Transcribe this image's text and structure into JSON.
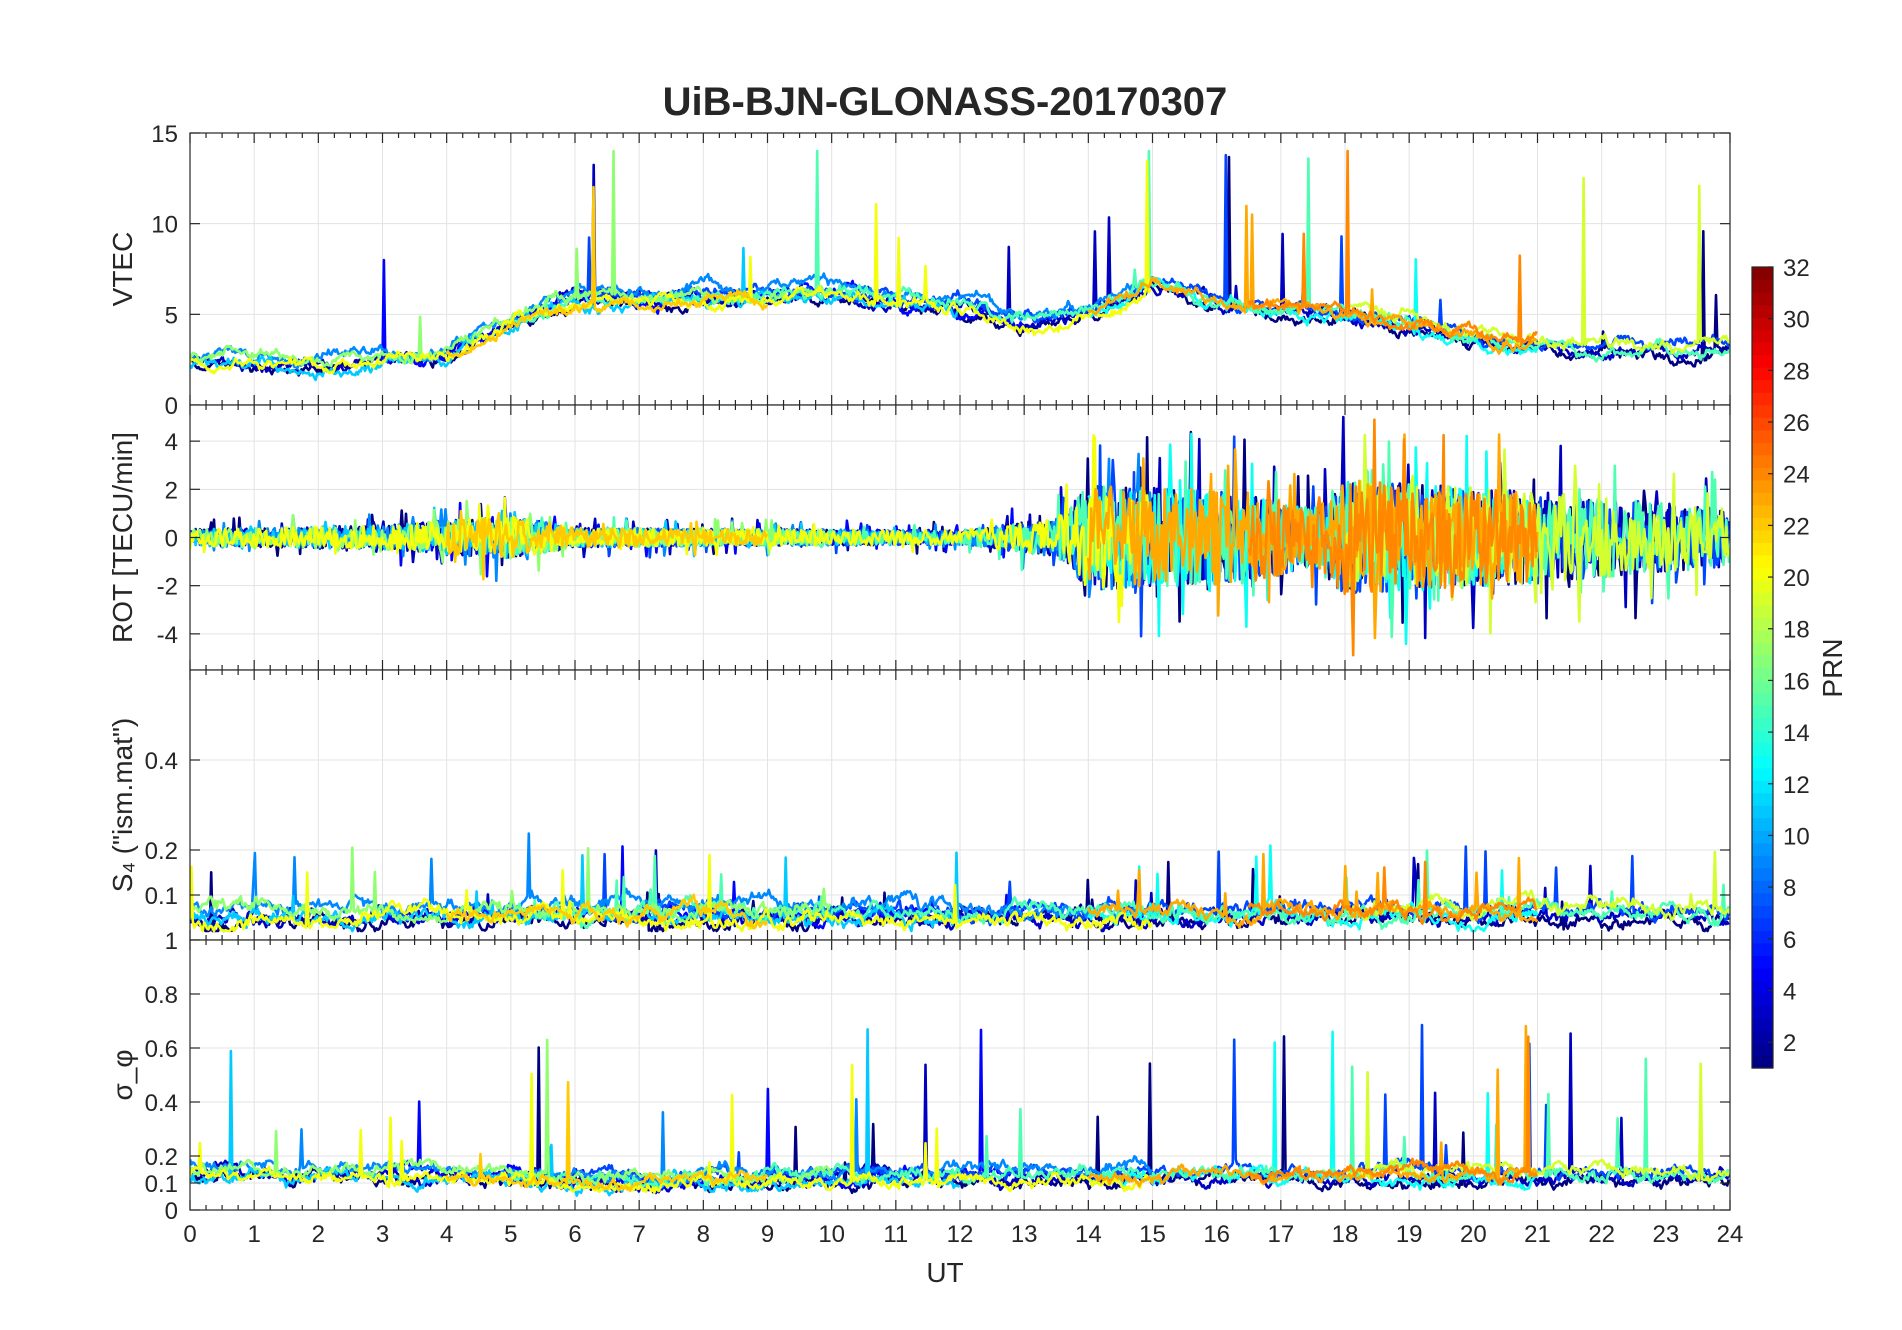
{
  "chart_data": {
    "type": "line",
    "title": "UiB-BJN-GLONASS-20170307",
    "xlabel": "UT",
    "xlim": [
      0,
      24
    ],
    "xticks": [
      "0",
      "1",
      "2",
      "3",
      "4",
      "5",
      "6",
      "7",
      "8",
      "9",
      "10",
      "11",
      "12",
      "13",
      "14",
      "15",
      "16",
      "17",
      "18",
      "19",
      "20",
      "21",
      "22",
      "23",
      "24"
    ],
    "grid": true,
    "panels": [
      {
        "id": "vtec",
        "ylabel": "VTEC",
        "ylim": [
          0,
          15
        ],
        "yticks": [
          {
            "v": 0,
            "label": "0"
          },
          {
            "v": 5,
            "label": "5"
          },
          {
            "v": 10,
            "label": "10"
          },
          {
            "v": 15,
            "label": "15"
          }
        ],
        "profile": {
          "base": [
            [
              0,
              2.6
            ],
            [
              2,
              2.3
            ],
            [
              4,
              2.8
            ],
            [
              5,
              4.6
            ],
            [
              6,
              5.8
            ],
            [
              8,
              6.0
            ],
            [
              10,
              6.3
            ],
            [
              12,
              5.5
            ],
            [
              13,
              4.6
            ],
            [
              14,
              5.2
            ],
            [
              15,
              6.8
            ],
            [
              16,
              5.6
            ],
            [
              18,
              5.2
            ],
            [
              20,
              3.6
            ],
            [
              22,
              3.0
            ],
            [
              24,
              3.2
            ]
          ],
          "noise": 0.35,
          "spike": 9.5,
          "spikeRate": 0.004,
          "lo": 0.6,
          "hi": 14
        }
      },
      {
        "id": "rot",
        "ylabel": "ROT [TECU/min]",
        "ylim": [
          -5.5,
          5.5
        ],
        "yticks": [
          {
            "v": -4,
            "label": "-4"
          },
          {
            "v": -2,
            "label": "-2"
          },
          {
            "v": 0,
            "label": "0"
          },
          {
            "v": 2,
            "label": "2"
          },
          {
            "v": 4,
            "label": "4"
          }
        ],
        "profile": {
          "base": [
            [
              0,
              0
            ],
            [
              24,
              0
            ]
          ],
          "amp": [
            [
              0,
              0.35
            ],
            [
              3,
              0.5
            ],
            [
              5,
              0.9
            ],
            [
              6,
              0.4
            ],
            [
              12,
              0.3
            ],
            [
              13.5,
              0.8
            ],
            [
              14,
              2.2
            ],
            [
              16.5,
              1.9
            ],
            [
              17.5,
              1.2
            ],
            [
              18,
              2.4
            ],
            [
              21,
              1.9
            ],
            [
              24,
              1.2
            ]
          ],
          "symmetric": true,
          "lo": -5.4,
          "hi": 5.4
        }
      },
      {
        "id": "s4",
        "ylabel": "S₄ (\"ism.mat\")",
        "ylim": [
          0,
          0.6
        ],
        "yticks": [
          {
            "v": 0.1,
            "label": "0.1"
          },
          {
            "v": 0.2,
            "label": "0.2"
          },
          {
            "v": 0.4,
            "label": "0.4"
          }
        ],
        "profile": {
          "base": [
            [
              0,
              0.06
            ],
            [
              24,
              0.06
            ]
          ],
          "noise": 0.018,
          "spike": 0.15,
          "spikeRate": 0.01,
          "lo": 0.02,
          "hi": 0.58
        }
      },
      {
        "id": "sigphi",
        "ylabel": "σ_φ",
        "ylim": [
          0,
          1
        ],
        "yticks": [
          {
            "v": 0,
            "label": "0"
          },
          {
            "v": 0.1,
            "label": "0.1"
          },
          {
            "v": 0.2,
            "label": "0.2"
          },
          {
            "v": 0.4,
            "label": "0.4"
          },
          {
            "v": 0.6,
            "label": "0.6"
          },
          {
            "v": 0.8,
            "label": "0.8"
          },
          {
            "v": 1,
            "label": "1"
          }
        ],
        "profile": {
          "base": [
            [
              0,
              0.15
            ],
            [
              5,
              0.13
            ],
            [
              6,
              0.11
            ],
            [
              11,
              0.13
            ],
            [
              14,
              0.13
            ],
            [
              24,
              0.13
            ]
          ],
          "noise": 0.025,
          "spike": 0.55,
          "spikeRate": 0.006,
          "lo": 0.04,
          "hi": 1
        }
      }
    ],
    "colorbar": {
      "label": "PRN",
      "range": [
        1,
        32
      ],
      "ticks": [
        "2",
        "4",
        "6",
        "8",
        "10",
        "12",
        "14",
        "16",
        "18",
        "20",
        "22",
        "24",
        "26",
        "28",
        "30",
        "32"
      ],
      "colormap": "jet"
    },
    "series": [
      {
        "prn": 1,
        "start": 0,
        "end": 24
      },
      {
        "prn": 3,
        "start": 0,
        "end": 24
      },
      {
        "prn": 5,
        "start": 3,
        "end": 13
      },
      {
        "prn": 7,
        "start": 6,
        "end": 24
      },
      {
        "prn": 9,
        "start": 0,
        "end": 15
      },
      {
        "prn": 11,
        "start": 0,
        "end": 12
      },
      {
        "prn": 13,
        "start": 14,
        "end": 21
      },
      {
        "prn": 15,
        "start": 5,
        "end": 24
      },
      {
        "prn": 17,
        "start": 0,
        "end": 10
      },
      {
        "prn": 19,
        "start": 18,
        "end": 24
      },
      {
        "prn": 20,
        "start": 0,
        "end": 15
      },
      {
        "prn": 22,
        "start": 4,
        "end": 9
      },
      {
        "prn": 23,
        "start": 14,
        "end": 21
      },
      {
        "prn": 24,
        "start": 16.5,
        "end": 21
      }
    ]
  }
}
